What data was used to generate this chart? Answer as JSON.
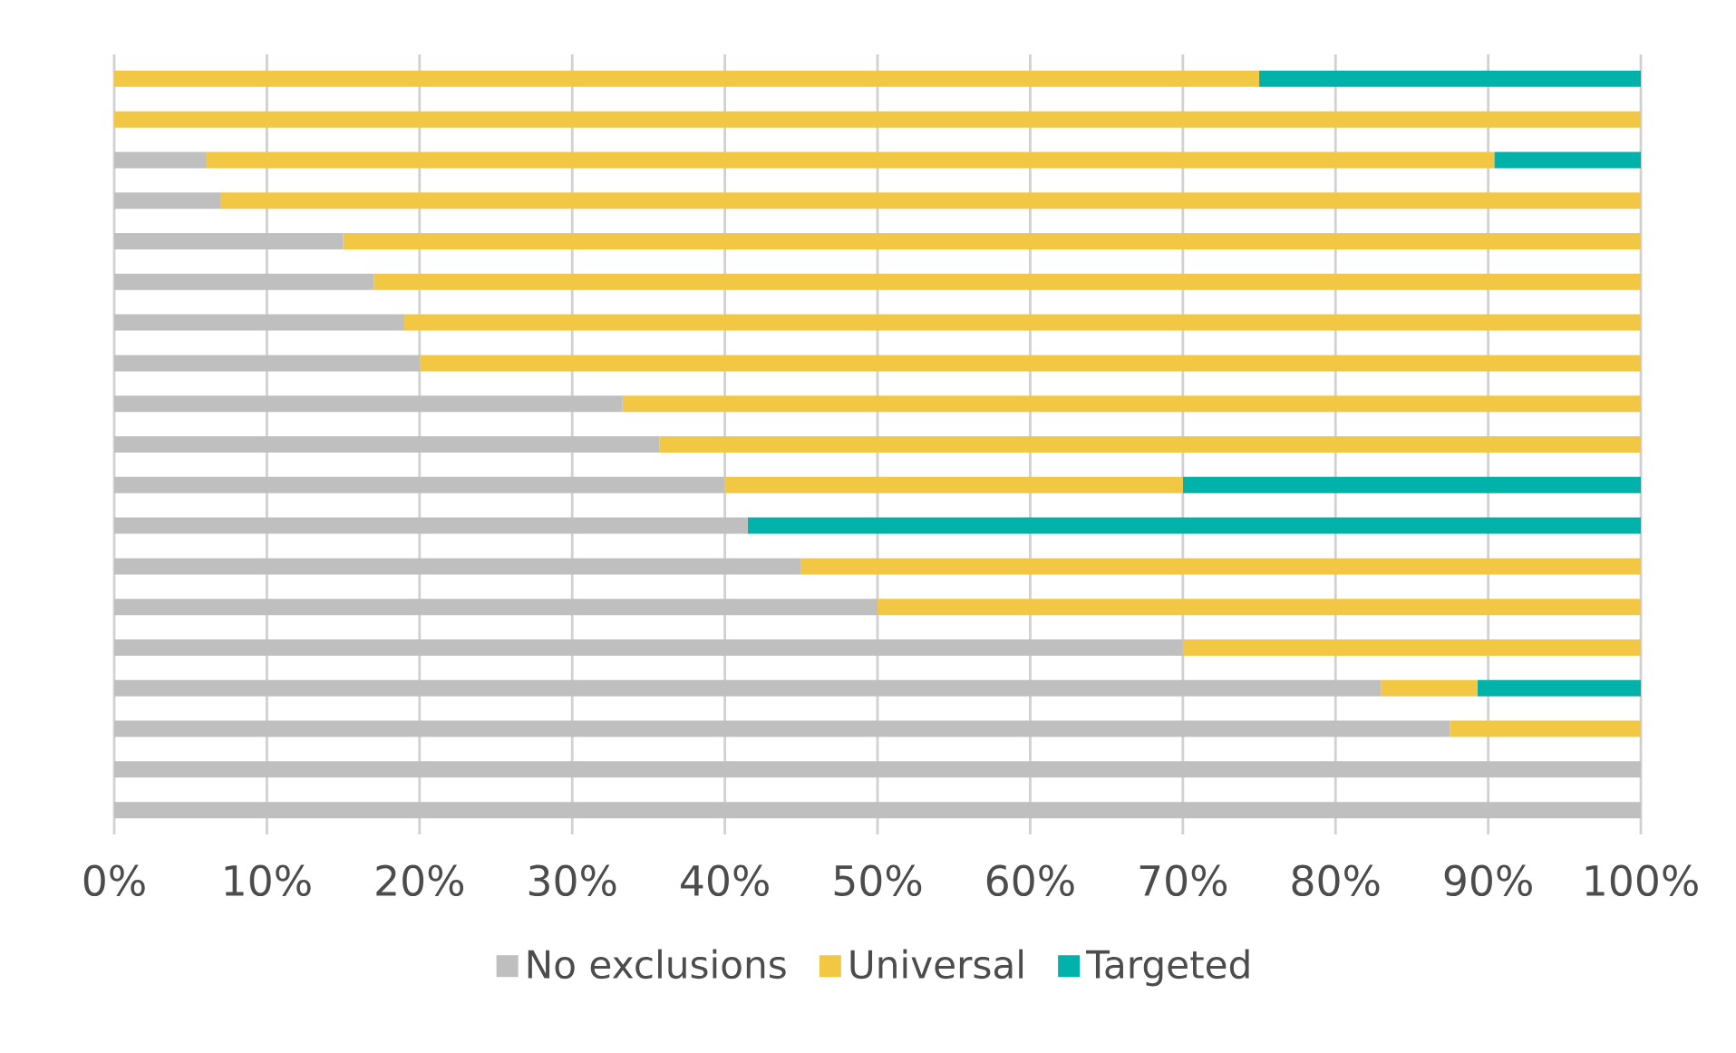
{
  "chart_data": {
    "type": "bar",
    "orientation": "horizontal",
    "stacked": true,
    "tick_labels": "x",
    "grid": "x",
    "legend": "bottom",
    "categories": [
      null,
      null,
      null,
      null,
      null,
      null,
      null,
      null,
      null,
      null,
      null,
      null,
      null,
      null,
      null,
      null,
      null,
      null,
      null
    ],
    "xlim": [
      0,
      100
    ],
    "xticks": [
      {
        "value": 0,
        "label": "0%"
      },
      {
        "value": 10,
        "label": "10%"
      },
      {
        "value": 20,
        "label": "20%"
      },
      {
        "value": 30,
        "label": "30%"
      },
      {
        "value": 40,
        "label": "40%"
      },
      {
        "value": 50,
        "label": "50%"
      },
      {
        "value": 60,
        "label": "60%"
      },
      {
        "value": 70,
        "label": "70%"
      },
      {
        "value": 80,
        "label": "80%"
      },
      {
        "value": 90,
        "label": "90%"
      },
      {
        "value": 100,
        "label": "100%"
      }
    ],
    "series": [
      {
        "name": "No exclusions",
        "color": "#bfbfbf",
        "values": [
          0,
          0,
          6,
          7,
          15,
          17,
          19,
          20,
          33.3,
          35.7,
          40,
          41.5,
          45,
          50,
          70,
          83,
          87.5,
          100,
          100
        ]
      },
      {
        "name": "Universal",
        "color": "#f2c744",
        "values": [
          75,
          100,
          84.4,
          93,
          85,
          83,
          81,
          80,
          66.7,
          64.3,
          30,
          0,
          55,
          50,
          30,
          6.3,
          12.5,
          0,
          0
        ]
      },
      {
        "name": "Targeted",
        "color": "#00b2a9",
        "values": [
          25,
          0,
          9.6,
          0,
          0,
          0,
          0,
          0,
          0,
          0,
          30,
          58.5,
          0,
          0,
          0,
          10.7,
          0,
          0,
          0
        ]
      }
    ]
  }
}
